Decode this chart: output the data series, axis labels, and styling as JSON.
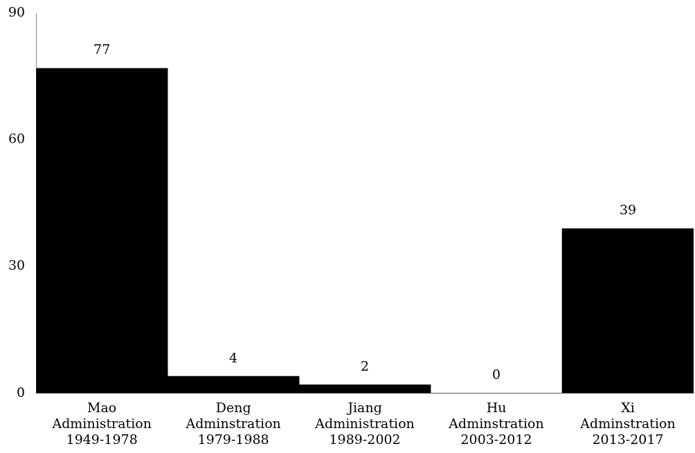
{
  "chart_data": {
    "type": "bar",
    "categories": [
      "Mao\nAdministration\n1949-1978",
      "Deng\nAdminstration\n1979-1988",
      "Jiang\nAdministration\n1989-2002",
      "Hu\nAdminstration\n2003-2012",
      "Xi\nAdminstration\n2013-2017"
    ],
    "values": [
      77,
      4,
      2,
      0,
      39
    ],
    "color": "#000000",
    "ylim": [
      0,
      90
    ],
    "yticks": [
      0,
      30,
      60,
      90
    ],
    "grid": false,
    "legend": false,
    "data_labels": true
  }
}
